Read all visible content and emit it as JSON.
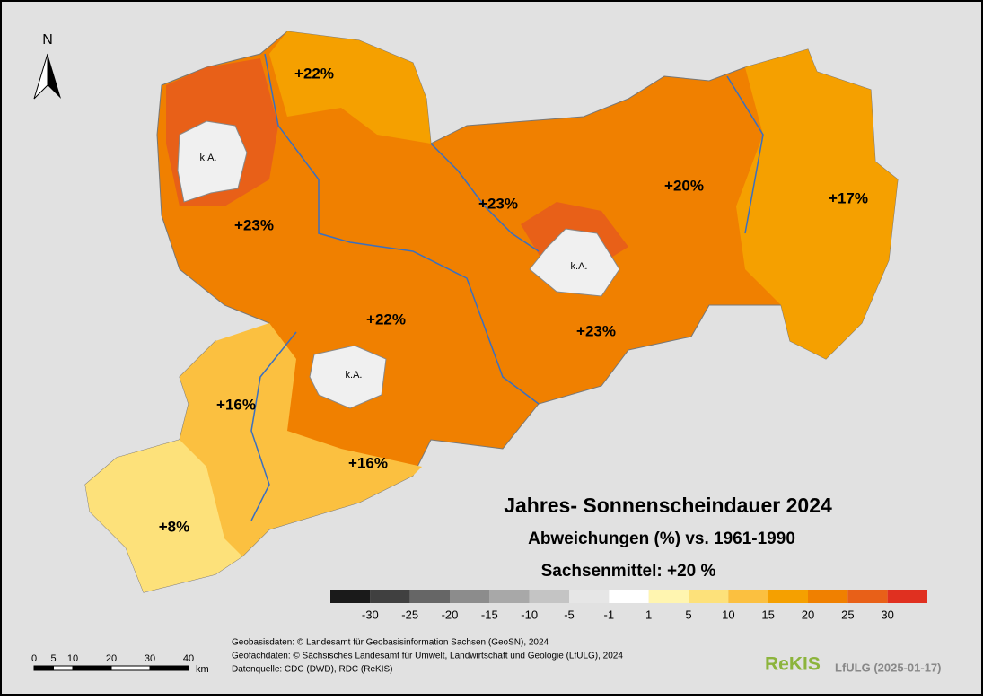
{
  "north": "N",
  "regions": [
    {
      "label": "+22%"
    },
    {
      "label": "k.A."
    },
    {
      "label": "+23%"
    },
    {
      "label": "+23%"
    },
    {
      "label": "+20%"
    },
    {
      "label": "+17%"
    },
    {
      "label": "k.A."
    },
    {
      "label": "+22%"
    },
    {
      "label": "+23%"
    },
    {
      "label": "k.A."
    },
    {
      "label": "+16%"
    },
    {
      "label": "+16%"
    },
    {
      "label": "+8%"
    }
  ],
  "title": "Jahres- Sonnenscheindauer 2024",
  "subtitle": "Abweichungen (%) vs. 1961-1990",
  "mean": "Sachsenmittel: +20 %",
  "legend": {
    "colors": [
      "#1a1a1a",
      "#404040",
      "#666666",
      "#8c8c8c",
      "#a8a8a8",
      "#c4c4c4",
      "#e6e6e6",
      "#ffffff",
      "#fff5b0",
      "#fde17a",
      "#fbc040",
      "#f5a000",
      "#f08000",
      "#e86018",
      "#e03020"
    ],
    "ticks": [
      -30,
      -25,
      -20,
      -15,
      -10,
      -5,
      -1,
      1,
      5,
      10,
      15,
      20,
      25,
      30
    ]
  },
  "scale": {
    "ticks": [
      0,
      5,
      10,
      20,
      30,
      40
    ],
    "unit": "km"
  },
  "credits": [
    "Geobasisdaten: © Landesamt für Geobasisinformation Sachsen (GeoSN), 2024",
    "Geofachdaten: © Sächsisches Landesamt für Umwelt, Landwirtschaft und Geologie (LfULG), 2024",
    "Datenquelle: CDC (DWD), RDC (ReKIS)"
  ],
  "brand": "ReKIS",
  "brand_note": "LfULG (2025-01-17)"
}
